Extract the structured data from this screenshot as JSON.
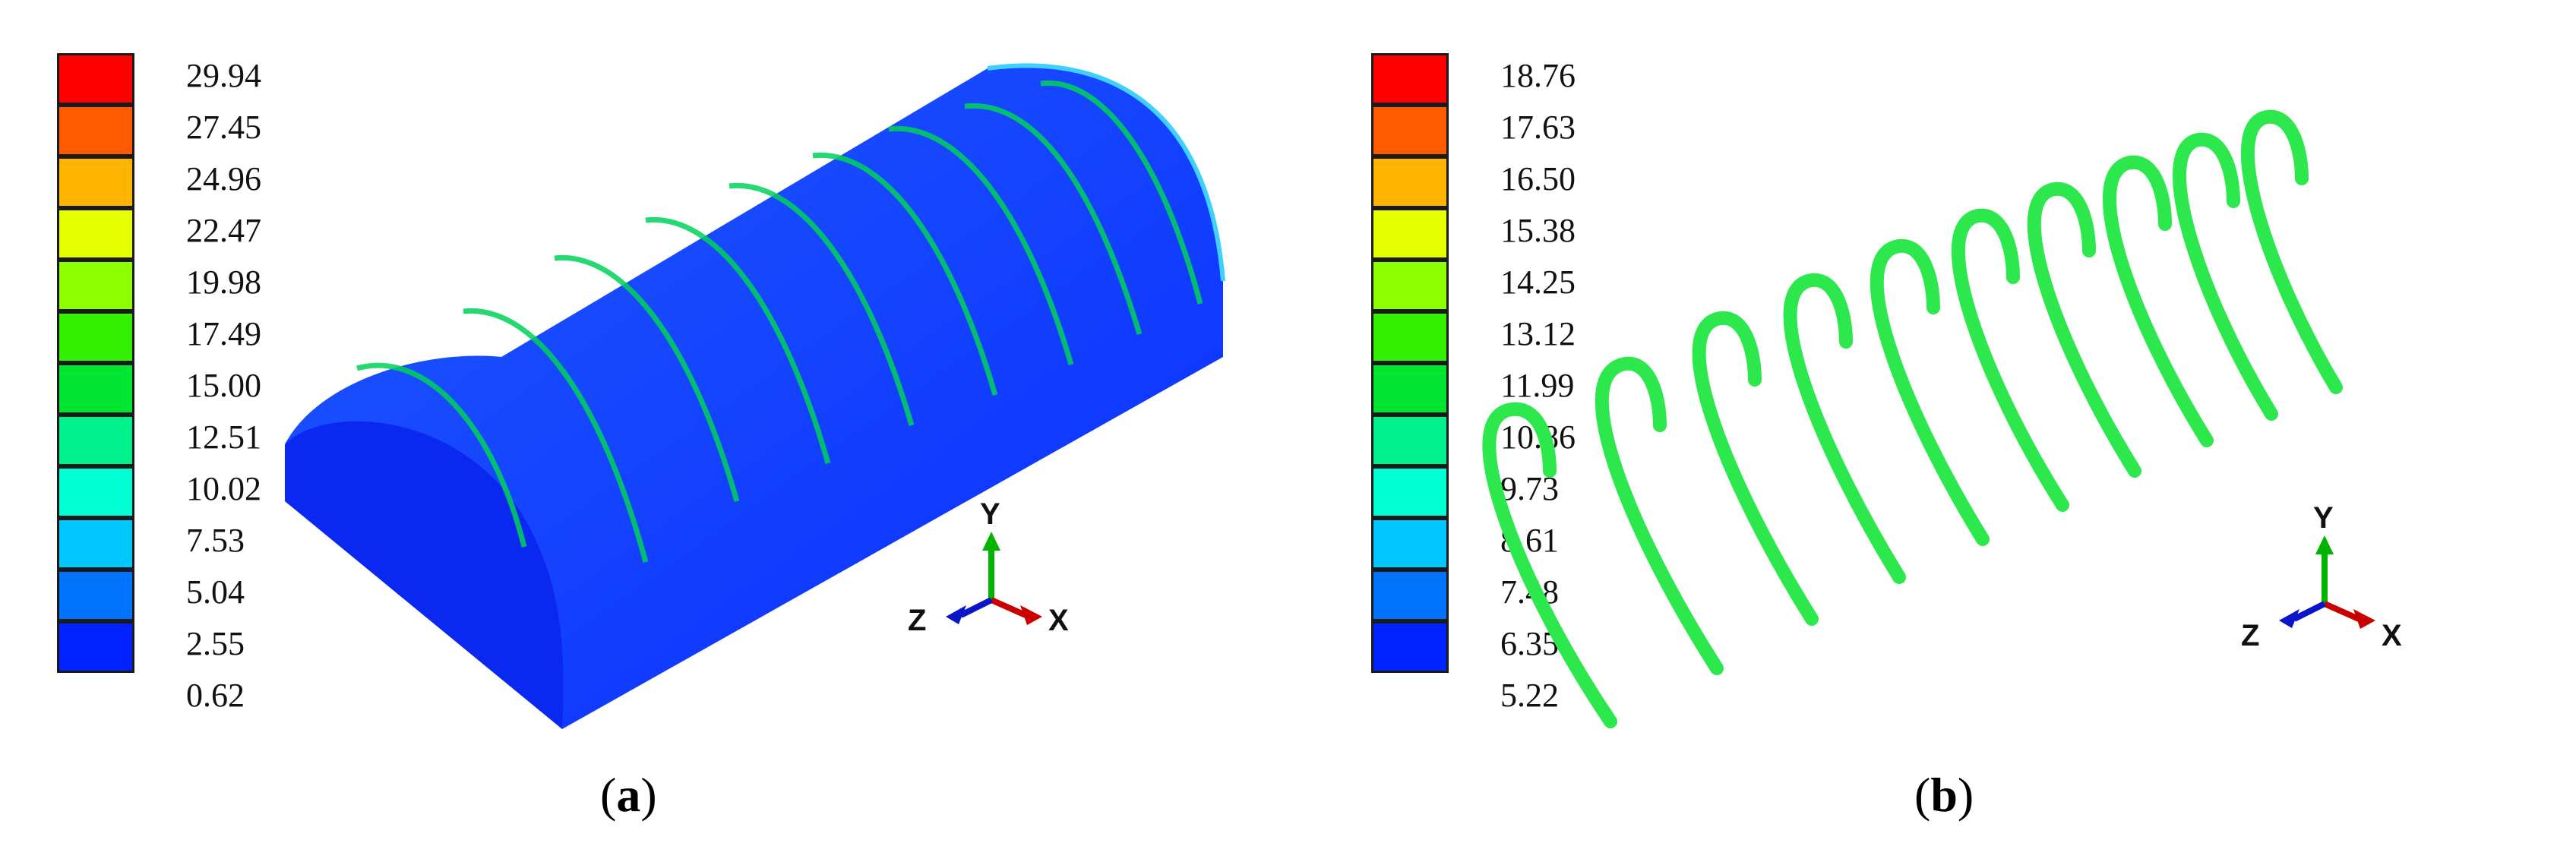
{
  "panel_a": {
    "legend_values": [
      "29.94",
      "27.45",
      "24.96",
      "22.47",
      "19.98",
      "17.49",
      "15.00",
      "12.51",
      "10.02",
      "7.53",
      "5.04",
      "2.55",
      "0.62"
    ],
    "caption_open": "(",
    "caption_letter": "a",
    "caption_close": ")",
    "axes": {
      "y": "Y",
      "z": "Z",
      "x": "X"
    }
  },
  "panel_b": {
    "legend_values": [
      "18.76",
      "17.63",
      "16.50",
      "15.38",
      "14.25",
      "13.12",
      "11.99",
      "10.86",
      "9.73",
      "8.61",
      "7.48",
      "6.35",
      "5.22"
    ],
    "caption_open": "(",
    "caption_letter": "b",
    "caption_close": ")",
    "axes": {
      "y": "Y",
      "z": "Z",
      "x": "X"
    }
  },
  "legend_colors": [
    "#ff0000",
    "#ff5a00",
    "#ffb400",
    "#e6ff00",
    "#8cff00",
    "#32f000",
    "#00e632",
    "#00f08c",
    "#00ffd2",
    "#00c8ff",
    "#0073ff",
    "#0023ff"
  ],
  "model_colors": {
    "body": "#0a3cff",
    "band": "#00d25a",
    "arch": "#2ce84c"
  }
}
